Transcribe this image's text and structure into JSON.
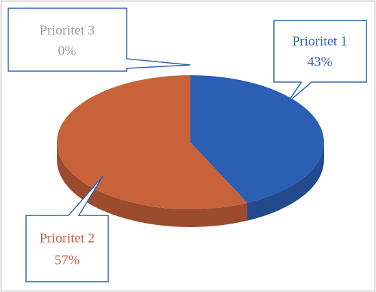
{
  "chart_data": {
    "type": "pie",
    "categories": [
      "Prioritet 1",
      "Prioritet 2",
      "Prioritet 3"
    ],
    "values": [
      43,
      57,
      0
    ],
    "value_labels": [
      "43%",
      "57%",
      "0%"
    ],
    "colors": [
      "#2b5fb3",
      "#c7623b",
      "#9a9a9a"
    ]
  }
}
